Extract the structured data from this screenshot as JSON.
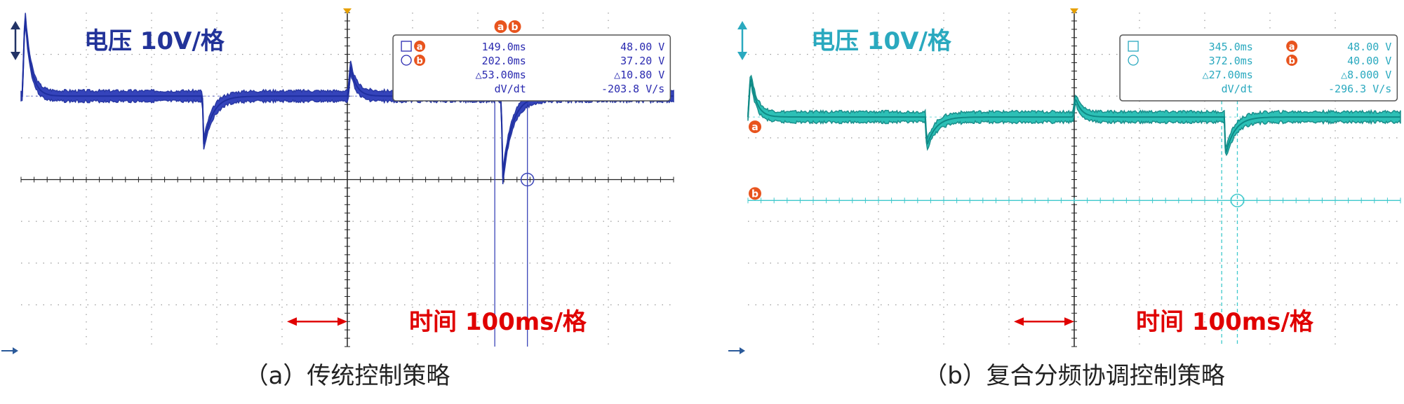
{
  "chart_data": [
    {
      "type": "line",
      "caption": "（a）传统控制策略",
      "volt_scale": "电压 10V/格",
      "time_scale": "时间 100ms/格",
      "colors": {
        "trace": "#1f2fa0",
        "trace_fill": "#2b3bb8",
        "cursor": "#3a44b8",
        "text": "#223399",
        "time": "#e00000"
      },
      "readout": {
        "t_a": "149.0ms",
        "v_a": "48.00 V",
        "t_b": "202.0ms",
        "v_b": "37.20 V",
        "dt": "△53.00ms",
        "dv": "△10.80 V",
        "slope_label": "dV/dt",
        "slope": "-203.8 V/s"
      },
      "markers": [
        "a",
        "b"
      ],
      "x_range_ms": [
        -500,
        500
      ],
      "y_range_div": [
        -4,
        4
      ],
      "baseline_div": 0,
      "steady_div": 2,
      "events": [
        {
          "t_ms": -494,
          "peak_div": 4.0,
          "kind": "overshoot"
        },
        {
          "t_ms": -220,
          "peak_div": 0.85,
          "kind": "dip"
        },
        {
          "t_ms": 5,
          "peak_div": 2.7,
          "kind": "overshoot"
        },
        {
          "t_ms": 238,
          "peak_div": 0.0,
          "kind": "dip"
        }
      ],
      "cursors_ms": [
        226,
        276
      ]
    },
    {
      "type": "line",
      "caption": "（b）复合分频协调控制策略",
      "volt_scale": "电压 10V/格",
      "time_scale": "时间 100ms/格",
      "colors": {
        "trace": "#0f8a86",
        "trace_fill": "#22bdb3",
        "cursor": "#3fc9cc",
        "text": "#2aa9bf",
        "time": "#e00000"
      },
      "readout": {
        "t_a": "345.0ms",
        "v_a": "48.00 V",
        "t_b": "372.0ms",
        "v_b": "40.00 V",
        "dt": "△27.00ms",
        "dv": "△8.000 V",
        "slope_label": "dV/dt",
        "slope": "-296.3 V/s"
      },
      "markers": [
        "a",
        "b"
      ],
      "x_range_ms": [
        -500,
        500
      ],
      "y_range_div": [
        -4,
        4
      ],
      "baseline_div": -0.5,
      "steady_div": 1.5,
      "events": [
        {
          "t_ms": -496,
          "peak_div": 2.5,
          "kind": "overshoot"
        },
        {
          "t_ms": -226,
          "peak_div": 0.8,
          "kind": "dip"
        },
        {
          "t_ms": 2,
          "peak_div": 1.95,
          "kind": "overshoot"
        },
        {
          "t_ms": 232,
          "peak_div": 0.6,
          "kind": "dip"
        }
      ],
      "cursors_ms": [
        226,
        250
      ]
    }
  ]
}
